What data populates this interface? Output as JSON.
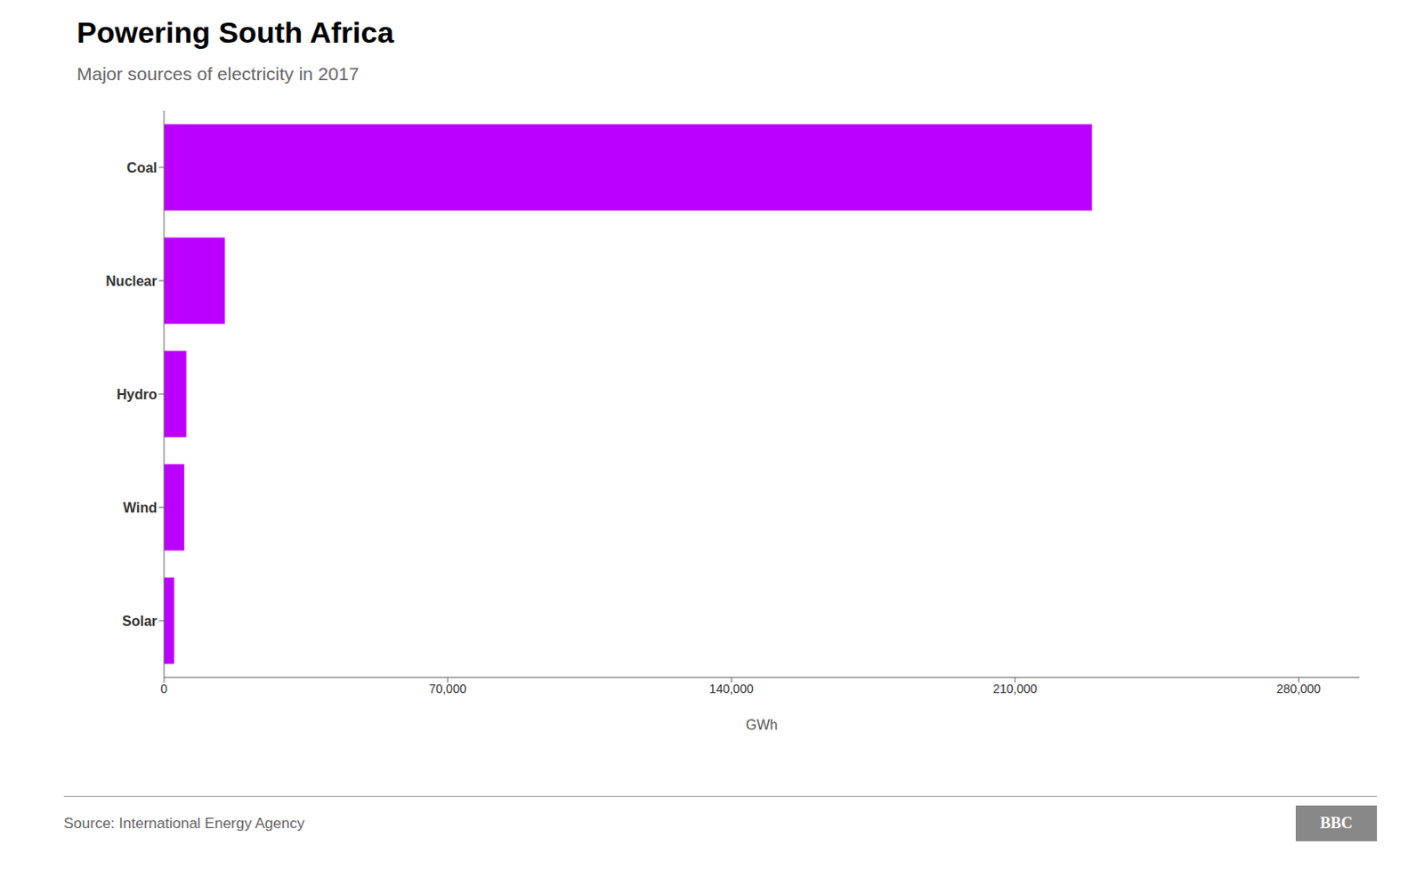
{
  "chart_data": {
    "type": "bar",
    "orientation": "horizontal",
    "title": "Powering South Africa",
    "subtitle": "Major sources of electricity in 2017",
    "categories": [
      "Coal",
      "Nuclear",
      "Hydro",
      "Wind",
      "Solar"
    ],
    "values": [
      229000,
      15000,
      5500,
      5000,
      2500
    ],
    "color": "#bb00ff",
    "xlabel": "GWh",
    "xlim": [
      0,
      295000
    ],
    "xticks": [
      0,
      {
        "value": 70000,
        "label": "70,000"
      },
      {
        "value": 140000,
        "label": "140,000"
      },
      {
        "value": 210000,
        "label": "210,000"
      },
      {
        "value": 280000,
        "label": "280,000"
      }
    ],
    "grid": false,
    "annotations": [
      "Source: International Energy Agency",
      "BBC"
    ]
  }
}
